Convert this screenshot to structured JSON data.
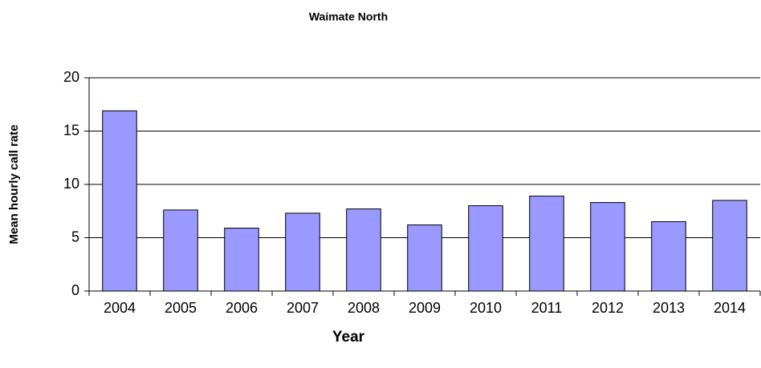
{
  "chart_data": {
    "type": "bar",
    "title": "Waimate North",
    "x_label": "Year",
    "y_label": "Mean hourly call rate",
    "categories": [
      "2004",
      "2005",
      "2006",
      "2007",
      "2008",
      "2009",
      "2010",
      "2011",
      "2012",
      "2013",
      "2014"
    ],
    "values": [
      16.9,
      7.6,
      5.9,
      7.3,
      7.7,
      6.2,
      8.0,
      8.9,
      8.3,
      6.5,
      8.5
    ],
    "color": "#9999ff",
    "ylim": [
      0,
      20
    ],
    "yticks": [
      0,
      5,
      10,
      15,
      20
    ],
    "grid": true
  }
}
